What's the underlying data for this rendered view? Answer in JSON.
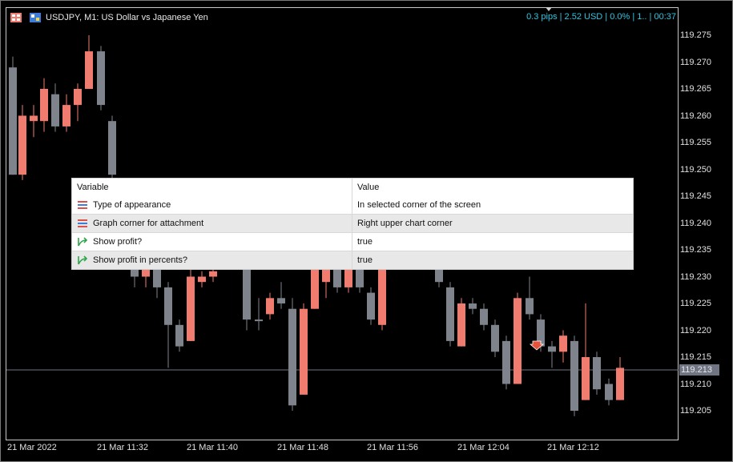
{
  "title": "USDJPY, M1:  US Dollar vs Japanese Yen",
  "info": "0.3 pips | 2.52 USD | 0.0% | 1.. | 00:37",
  "price_axis": [
    "119.275",
    "119.270",
    "119.265",
    "119.260",
    "119.255",
    "119.250",
    "119.245",
    "119.240",
    "119.235",
    "119.230",
    "119.225",
    "119.220",
    "119.215",
    "119.210",
    "119.205"
  ],
  "current_price": "119.213",
  "time_axis": [
    "21 Mar 2022",
    "21 Mar 11:32",
    "21 Mar 11:40",
    "21 Mar 11:48",
    "21 Mar 11:56",
    "21 Mar 12:04",
    "21 Mar 12:12"
  ],
  "colors": {
    "bull": "#f07b6f",
    "bear": "#7f848c",
    "background": "#000000",
    "info": "#2ec5e0"
  },
  "params": {
    "header": {
      "variable": "Variable",
      "value": "Value"
    },
    "rows": [
      {
        "variable": "Type of appearance",
        "value": "In selected corner of the screen",
        "icon": "enum-icon"
      },
      {
        "variable": "Graph corner for attachment",
        "value": "Right upper chart corner",
        "icon": "enum-icon"
      },
      {
        "variable": "Show profit?",
        "value": "true",
        "icon": "bool-arrow-icon"
      },
      {
        "variable": "Show profit in percents?",
        "value": "true",
        "icon": "bool-arrow-icon"
      }
    ]
  }
}
